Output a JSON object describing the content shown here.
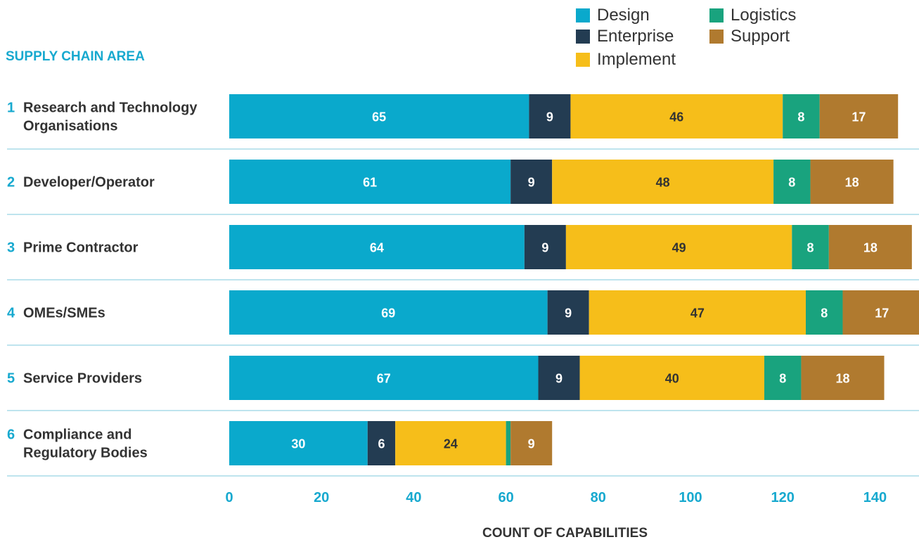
{
  "chart_data": {
    "type": "bar",
    "orientation": "horizontal",
    "stacked": true,
    "ylabel": "SUPPLY CHAIN AREA",
    "xlabel": "COUNT OF CAPABILITIES",
    "xlim": [
      0,
      150
    ],
    "x_ticks": [
      "0",
      "20",
      "40",
      "60",
      "80",
      "100",
      "120",
      "140"
    ],
    "categories": [
      {
        "num": "1",
        "label": "Research and Technology Organisations"
      },
      {
        "num": "2",
        "label": "Developer/Operator"
      },
      {
        "num": "3",
        "label": "Prime Contractor"
      },
      {
        "num": "4",
        "label": "OMEs/SMEs"
      },
      {
        "num": "5",
        "label": "Service Providers"
      },
      {
        "num": "6",
        "label": "Compliance and Regulatory Bodies"
      }
    ],
    "series": [
      {
        "name": "Design",
        "color": "#0aa9cc",
        "label_color": "#ffffff",
        "values": [
          65,
          61,
          64,
          69,
          67,
          30
        ]
      },
      {
        "name": "Enterprise",
        "color": "#233c52",
        "label_color": "#ffffff",
        "values": [
          9,
          9,
          9,
          9,
          9,
          6
        ]
      },
      {
        "name": "Implement",
        "color": "#f6be1a",
        "label_color": "#333333",
        "values": [
          46,
          48,
          49,
          47,
          40,
          24
        ]
      },
      {
        "name": "Logistics",
        "color": "#19a37e",
        "label_color": "#ffffff",
        "values": [
          8,
          8,
          8,
          8,
          8,
          1
        ]
      },
      {
        "name": "Support",
        "color": "#b07a2f",
        "label_color": "#ffffff",
        "values": [
          17,
          18,
          18,
          17,
          18,
          9
        ]
      }
    ],
    "value_labels_hidden": [
      [],
      [],
      [],
      [],
      [],
      [
        3
      ]
    ],
    "grid": false,
    "legend": "top-right",
    "colors": {
      "accent": "#17a9cf",
      "separator": "#a9dce8",
      "text": "#333333"
    }
  }
}
